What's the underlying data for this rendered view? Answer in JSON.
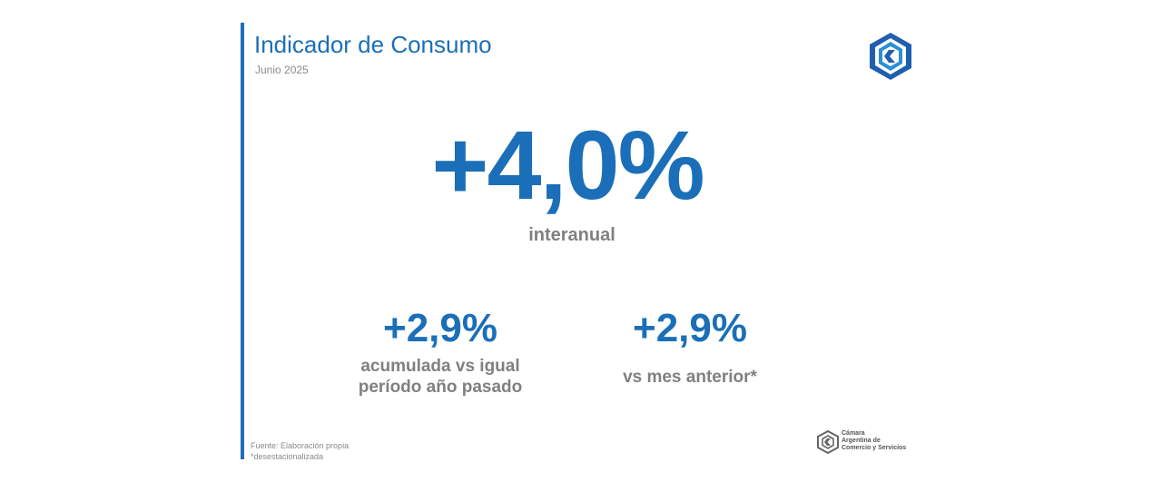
{
  "header": {
    "title": "Indicador de Consumo",
    "subtitle": "Junio 2025"
  },
  "main": {
    "headline_value": "+4,0%",
    "headline_label": "interanual",
    "stats": [
      {
        "value": "+2,9%",
        "label_lines": [
          "acumulada vs igual",
          "período año pasado"
        ]
      },
      {
        "value": "+2,9%",
        "label_lines": [
          "vs mes anterior*"
        ]
      }
    ]
  },
  "footer": {
    "source": "Fuente: Elaboración propia",
    "note": "*desestacionalizada",
    "org_lines": [
      "Cámara",
      "Argentina de",
      "Comercio y Servicios"
    ]
  },
  "colors": {
    "accent": "#1b6fb8",
    "muted_text": "#808080"
  },
  "icons": {
    "top_logo": "cac-logo-icon",
    "bottom_logo": "cac-logo-small-icon"
  }
}
